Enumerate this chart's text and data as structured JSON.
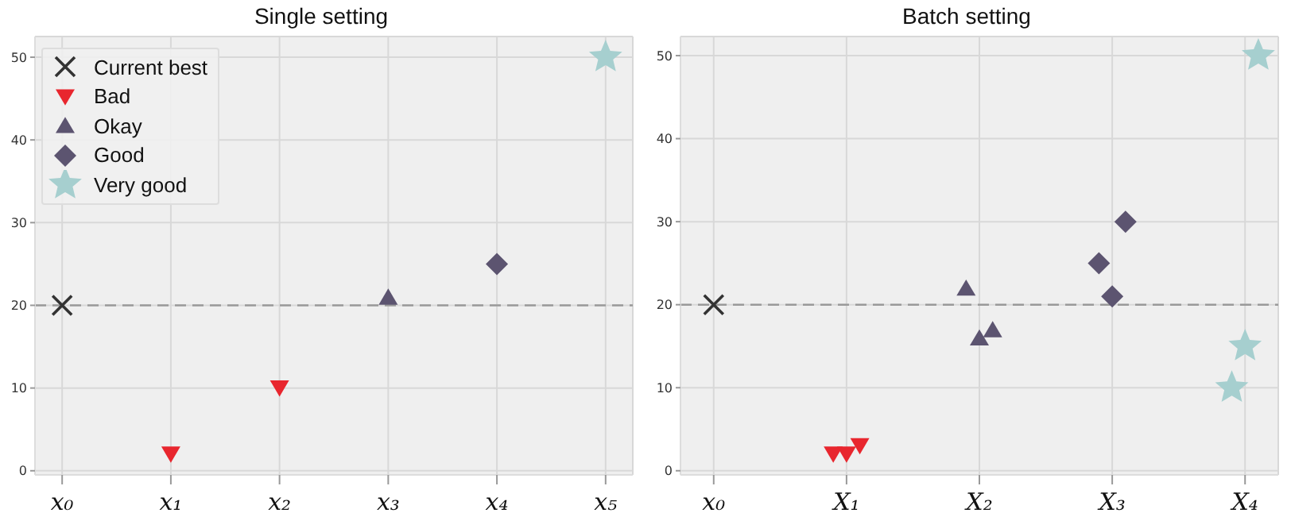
{
  "chart_data": [
    {
      "type": "scatter",
      "title": "Single setting",
      "categories": [
        "x₀",
        "x₁",
        "x₂",
        "x₃",
        "x₄",
        "x₅"
      ],
      "ylim": [
        -0.5,
        52.5
      ],
      "yticks": [
        0,
        10,
        20,
        30,
        40,
        50
      ],
      "grid": true,
      "legend": "top left",
      "ref_lines": [
        {
          "axis": "y",
          "value": 20,
          "color": "#9a9a9a",
          "line_style": "dashed"
        }
      ],
      "series": [
        {
          "name": "Current best",
          "color": "#333333",
          "marker": "cross",
          "x": [
            "x₀"
          ],
          "values": [
            20
          ]
        },
        {
          "name": "Bad",
          "color": "#e8262e",
          "marker": "triangle-down",
          "x": [
            "x₁",
            "x₂"
          ],
          "values": [
            2,
            10
          ]
        },
        {
          "name": "Okay",
          "color": "#5c5470",
          "marker": "triangle",
          "x": [
            "x₃"
          ],
          "values": [
            21
          ]
        },
        {
          "name": "Good",
          "color": "#5c5470",
          "marker": "diamond",
          "x": [
            "x₄"
          ],
          "values": [
            25
          ]
        },
        {
          "name": "Very good",
          "color": "#a6cfcf",
          "marker": "star",
          "x": [
            "x₅"
          ],
          "values": [
            50
          ]
        }
      ]
    },
    {
      "type": "scatter",
      "title": "Batch setting",
      "categories": [
        "x₀",
        "X₁",
        "X₂",
        "X₃",
        "X₄"
      ],
      "ylim": [
        -0.5,
        52.3
      ],
      "yticks": [
        0,
        10,
        20,
        30,
        40,
        50
      ],
      "grid": true,
      "ref_lines": [
        {
          "axis": "y",
          "value": 20,
          "color": "#9a9a9a",
          "line_style": "dashed"
        }
      ],
      "series": [
        {
          "color": "#333333",
          "marker": "cross",
          "x": [
            "x₀"
          ],
          "values": [
            20
          ]
        },
        {
          "color": "#e8262e",
          "marker": "triangle-down",
          "x": [
            "X₁",
            "X₁",
            "X₁"
          ],
          "values": [
            2,
            2,
            3
          ]
        },
        {
          "color": "#5c5470",
          "marker": "triangle",
          "x": [
            "X₂",
            "X₂",
            "X₂"
          ],
          "values": [
            22,
            16,
            17
          ]
        },
        {
          "color": "#5c5470",
          "marker": "diamond",
          "x": [
            "X₃",
            "X₃",
            "X₃"
          ],
          "values": [
            25,
            21,
            30
          ]
        },
        {
          "color": "#a6cfcf",
          "marker": "star",
          "x": [
            "X₄",
            "X₄",
            "X₄"
          ],
          "values": [
            10,
            15,
            50
          ]
        }
      ]
    }
  ]
}
